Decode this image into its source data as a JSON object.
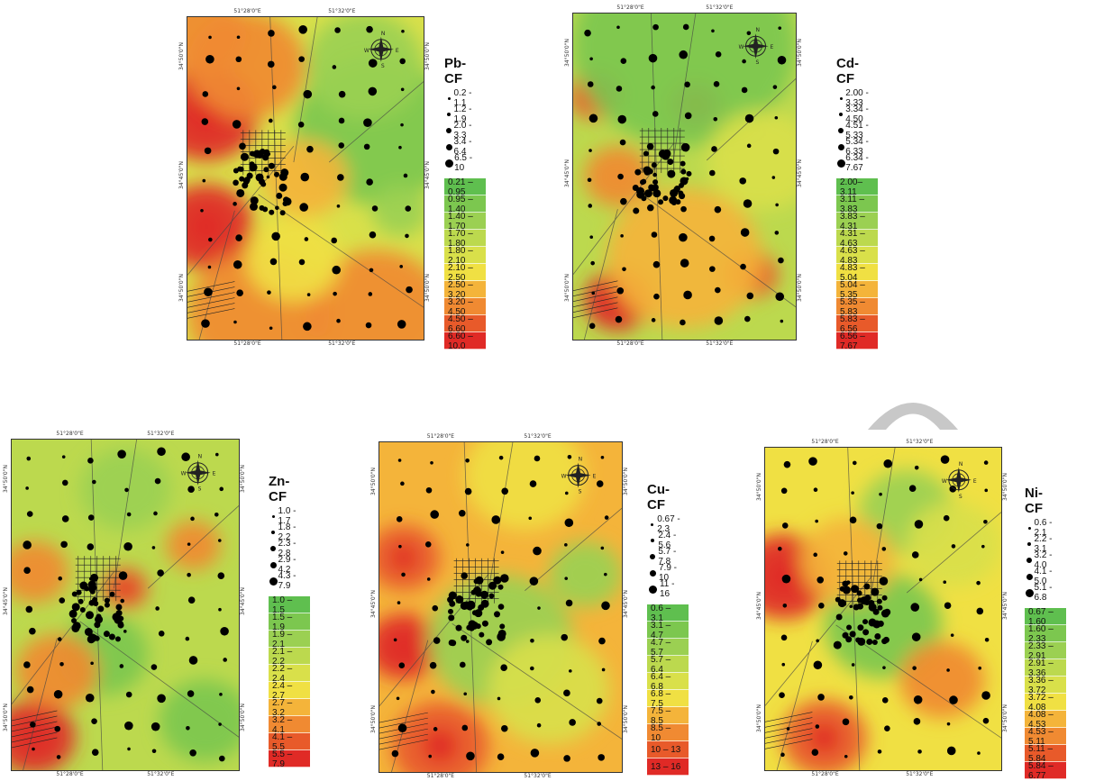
{
  "coords": {
    "lon_left": "51°28'0\"E",
    "lon_right": "51°32'0\"E",
    "lat_upper": "34°50'0\"N",
    "lat_mid": "34°45'0\"N",
    "lat_lower": "34°50'0\"N"
  },
  "compass": {
    "n": "N",
    "s": "S",
    "e": "E",
    "w": "W"
  },
  "palette": [
    "#5fbf4f",
    "#7cc74f",
    "#9bd052",
    "#bcd94e",
    "#d9e04a",
    "#f0e043",
    "#f4b43a",
    "#f08a32",
    "#e85a2a",
    "#e02a26"
  ],
  "panels": [
    {
      "id": "pb",
      "title": "Pb-CF",
      "point_classes": [
        "0.2 - 1.1",
        "1.2 - 1.9",
        "2.0 - 3.3",
        "3.4 - 6.4",
        "6.5 - 10"
      ],
      "color_classes": [
        "0.21 – 0.95",
        "0.95 – 1.40",
        "1.40 – 1.70",
        "1.70 – 1.80",
        "1.80 – 2.10",
        "2.10 – 2.50",
        "2.50 – 3.20",
        "3.20 – 4.50",
        "4.50 – 6.60",
        "6.60 – 10.0"
      ]
    },
    {
      "id": "cd",
      "title": "Cd-CF",
      "point_classes": [
        "2.00 - 3.33",
        "3.34 - 4.50",
        "4.51 - 5.33",
        "5.34 - 6.33",
        "6.34 - 7.67"
      ],
      "color_classes": [
        "2.00– 3.11",
        "3.11 – 3.83",
        "3.83 – 4.31",
        "4.31 – 4.63",
        "4.63 – 4.83",
        "4.83 – 5.04",
        "5.04 – 5.35",
        "5.35 – 5.83",
        "5.83 – 6.56",
        "6.56 – 7.67"
      ]
    },
    {
      "id": "zn",
      "title": "Zn-CF",
      "point_classes": [
        "1.0 - 1.7",
        "1.8 - 2.2",
        "2.3 - 2.8",
        "2.9 - 4.2",
        "4.3 - 7.9"
      ],
      "color_classes": [
        "1.0 – 1.5",
        "1.5 – 1.9",
        "1.9 – 2.1",
        "2.1 – 2.2",
        "2.2 – 2.4",
        "2.4 – 2.7",
        "2.7 – 3.2",
        "3.2 – 4.1",
        "4.1 – 5.5",
        "5.5 – 7.9"
      ]
    },
    {
      "id": "cu",
      "title": "Cu-CF",
      "point_classes": [
        "0.67 - 2.3",
        "2.4 - 5.6",
        "5.7 - 7.8",
        "7.9 - 10",
        "11 - 16"
      ],
      "color_classes": [
        "0.6 – 3.1",
        "3.1 – 4.7",
        "4.7 – 5.7",
        "5.7 – 6.4",
        "6.4 – 6.8",
        "6.8 – 7.5",
        "7.5 – 8.5",
        "8.5 – 10",
        "10 – 13",
        "13 – 16"
      ]
    },
    {
      "id": "ni",
      "title": "Ni- CF",
      "point_classes": [
        "0.6 - 2.1",
        "2.2 - 3.1",
        "3.2 - 4.0",
        "4.1 - 5.0",
        "5.1 - 6.8"
      ],
      "color_classes": [
        "0.67 – 1.60",
        "1.60 – 2.33",
        "2.33 – 2.91",
        "2.91 – 3.36",
        "3.36 – 3.72",
        "3.72 – 4.08",
        "4.08 – 4.53",
        "4.53 – 5.11",
        "5.11 – 5.84",
        "5.84 – 6.77"
      ]
    }
  ]
}
